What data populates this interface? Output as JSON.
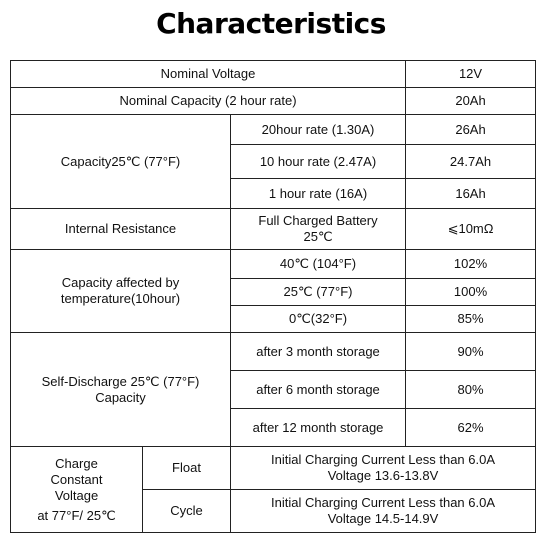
{
  "title": "Characteristics",
  "nominal_voltage": {
    "label": "Nominal Voltage",
    "value": "12V"
  },
  "nominal_capacity": {
    "label": "Nominal Capacity (2 hour rate)",
    "value": "20Ah"
  },
  "capacity_25c": {
    "label": "Capacity25℃ (77°F)",
    "rows": [
      {
        "condition": "20hour rate (1.30A)",
        "value": "26Ah"
      },
      {
        "condition": "10 hour rate (2.47A)",
        "value": "24.7Ah"
      },
      {
        "condition": "1 hour rate (16A)",
        "value": "16Ah"
      }
    ]
  },
  "internal_resistance": {
    "label": "Internal Resistance",
    "condition_line1": "Full Charged Battery",
    "condition_line2": "25℃",
    "value": "⩽10mΩ"
  },
  "capacity_temperature": {
    "label_line1": "Capacity affected by",
    "label_line2": "temperature(10hour)",
    "rows": [
      {
        "condition": "40℃ (104°F)",
        "value": "102%"
      },
      {
        "condition": "25℃ (77°F)",
        "value": "100%"
      },
      {
        "condition": "0℃(32°F)",
        "value": "85%"
      }
    ]
  },
  "self_discharge": {
    "label_line1": "Self-Discharge 25℃ (77°F)",
    "label_line2": "Capacity",
    "rows": [
      {
        "condition": "after 3 month storage",
        "value": "90%"
      },
      {
        "condition": "after 6 month storage",
        "value": "80%"
      },
      {
        "condition": "after 12 month storage",
        "value": "62%"
      }
    ]
  },
  "charge_voltage": {
    "label_line1": "Charge",
    "label_line2": "Constant",
    "label_line3": "Voltage",
    "label_line4": "at 77°F/ 25℃",
    "modes": [
      {
        "mode": "Float",
        "line1": "Initial Charging Current Less than 6.0A",
        "line2": "Voltage 13.6-13.8V"
      },
      {
        "mode": "Cycle",
        "line1": "Initial Charging Current Less than 6.0A",
        "line2": "Voltage 14.5-14.9V"
      }
    ]
  }
}
